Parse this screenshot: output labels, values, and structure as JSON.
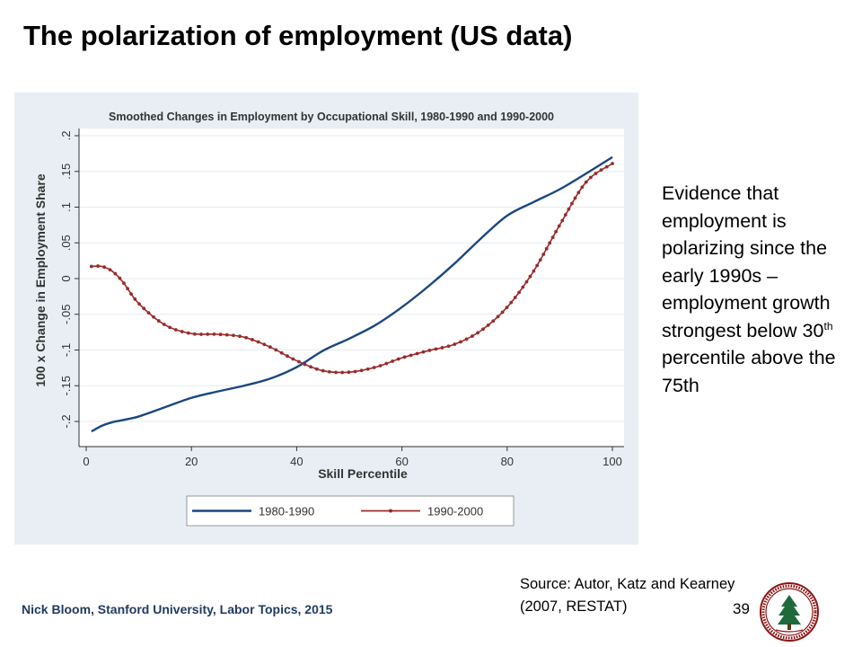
{
  "slide": {
    "title": "The polarization of employment (US data)",
    "side_text": {
      "part1": "Evidence that employment is polarizing since the early 1990s – employment growth strongest below 30",
      "sup": "th",
      "part2": " percentile above the 75th"
    },
    "source": "Source: Autor, Katz and Kearney (2007, RESTAT)",
    "footer": "Nick Bloom, Stanford University, Labor Topics, 2015",
    "page_number": "39",
    "seal_icon": "stanford-seal-icon"
  },
  "chart_data": {
    "type": "line",
    "title": "Smoothed Changes in Employment by Occupational Skill, 1980-1990 and 1990-2000",
    "xlabel": "Skill Percentile",
    "ylabel": "100 x Change in Employment Share",
    "xlim": [
      0,
      100
    ],
    "ylim": [
      -0.2,
      0.2
    ],
    "xticks": [
      "0",
      "20",
      "40",
      "60",
      "80",
      "100"
    ],
    "yticks": [
      "-.2",
      "-.15",
      "-.1",
      "-.05",
      "0",
      ".05",
      ".1",
      ".15",
      ".2"
    ],
    "grid": true,
    "legend_position": "bottom",
    "x": [
      1,
      3,
      5,
      7,
      10,
      15,
      20,
      25,
      30,
      35,
      40,
      45,
      50,
      55,
      60,
      65,
      70,
      75,
      80,
      85,
      90,
      95,
      100
    ],
    "series": [
      {
        "name": "1980-1990",
        "color": "#1a4780",
        "marker": "none",
        "values": [
          -0.214,
          -0.206,
          -0.201,
          -0.198,
          -0.193,
          -0.18,
          -0.167,
          -0.158,
          -0.15,
          -0.14,
          -0.124,
          -0.101,
          -0.084,
          -0.065,
          -0.04,
          -0.011,
          0.021,
          0.056,
          0.088,
          0.107,
          0.125,
          0.147,
          0.17
        ]
      },
      {
        "name": "1990-2000",
        "color": "#9b2a2a",
        "marker": "dot",
        "values": [
          0.017,
          0.017,
          0.01,
          -0.005,
          -0.035,
          -0.065,
          -0.077,
          -0.078,
          -0.082,
          -0.096,
          -0.115,
          -0.129,
          -0.131,
          -0.124,
          -0.111,
          -0.101,
          -0.092,
          -0.073,
          -0.04,
          0.01,
          0.075,
          0.135,
          0.161
        ]
      }
    ],
    "colors": {
      "panel_bg": "#e8eef3",
      "plot_bg": "#ffffff",
      "grid": "#e6ebef",
      "axis": "#333333"
    }
  }
}
